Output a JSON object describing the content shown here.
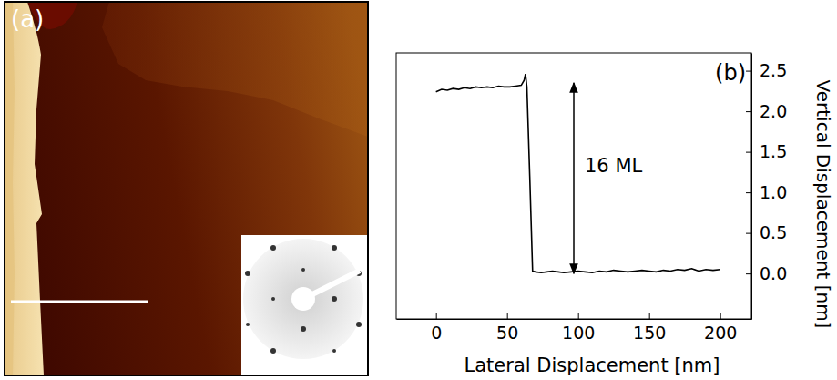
{
  "panel_a": {
    "label": "(a)"
  },
  "chart_data": {
    "type": "line",
    "title": "(b)",
    "x_label": "Lateral Displacement [nm]",
    "y_label": "Vertical Displacement [nm]",
    "x": [
      0,
      4,
      8,
      12,
      16,
      20,
      24,
      28,
      32,
      36,
      40,
      44,
      48,
      52,
      56,
      60,
      62,
      63,
      64,
      66,
      68,
      70,
      74,
      78,
      82,
      86,
      90,
      95,
      100,
      105,
      110,
      115,
      120,
      125,
      130,
      135,
      140,
      145,
      150,
      155,
      160,
      165,
      170,
      175,
      180,
      185,
      190,
      195,
      200
    ],
    "values": [
      2.24,
      2.27,
      2.26,
      2.28,
      2.27,
      2.29,
      2.28,
      2.3,
      2.29,
      2.3,
      2.29,
      2.31,
      2.3,
      2.3,
      2.31,
      2.32,
      2.38,
      2.46,
      2.3,
      1.2,
      0.03,
      0.02,
      0.01,
      0.02,
      0.03,
      0.02,
      0.01,
      0.02,
      0.03,
      0.02,
      0.01,
      0.03,
      0.02,
      0.04,
      0.03,
      0.02,
      0.03,
      0.04,
      0.03,
      0.02,
      0.04,
      0.03,
      0.05,
      0.04,
      0.06,
      0.03,
      0.05,
      0.04,
      0.05
    ],
    "color": "#000000",
    "xlim": [
      -28,
      222
    ],
    "ylim": [
      -0.56,
      2.72
    ],
    "xticks": [
      0,
      50,
      100,
      150,
      200
    ],
    "yticks": [
      {
        "value": 0,
        "label": "0.0"
      },
      {
        "value": 0.5,
        "label": "0.5"
      },
      {
        "value": 1,
        "label": "1.0"
      },
      {
        "value": 1.5,
        "label": "1.5"
      },
      {
        "value": 2,
        "label": "2.0"
      },
      {
        "value": 2.5,
        "label": "2.5"
      }
    ],
    "grid": false,
    "annotations": [
      {
        "text": "16 ML",
        "x": 97,
        "y_from": 0,
        "y_to": 2.35
      }
    ]
  }
}
